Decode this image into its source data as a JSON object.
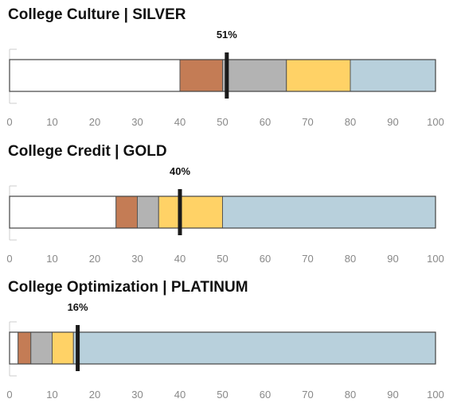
{
  "chart_data": [
    {
      "type": "bar",
      "title": "College Culture  |  SILVER",
      "xlim": [
        0,
        100
      ],
      "ticks": [
        "0",
        "10",
        "20",
        "30",
        "40",
        "50",
        "60",
        "70",
        "80",
        "90",
        "100"
      ],
      "bands": [
        {
          "from": 0,
          "to": 40,
          "color": "#ffffff"
        },
        {
          "from": 40,
          "to": 50,
          "color": "#c47c55"
        },
        {
          "from": 50,
          "to": 65,
          "color": "#b3b3b3"
        },
        {
          "from": 65,
          "to": 80,
          "color": "#ffd266"
        },
        {
          "from": 80,
          "to": 100,
          "color": "#b8d0dc"
        }
      ],
      "marker": {
        "value": 51,
        "label": "51%"
      }
    },
    {
      "type": "bar",
      "title": "College Credit  |  GOLD",
      "xlim": [
        0,
        100
      ],
      "ticks": [
        "0",
        "10",
        "20",
        "30",
        "40",
        "50",
        "60",
        "70",
        "80",
        "90",
        "100"
      ],
      "bands": [
        {
          "from": 0,
          "to": 25,
          "color": "#ffffff"
        },
        {
          "from": 25,
          "to": 30,
          "color": "#c47c55"
        },
        {
          "from": 30,
          "to": 35,
          "color": "#b3b3b3"
        },
        {
          "from": 35,
          "to": 50,
          "color": "#ffd266"
        },
        {
          "from": 50,
          "to": 100,
          "color": "#b8d0dc"
        }
      ],
      "marker": {
        "value": 40,
        "label": "40%"
      }
    },
    {
      "type": "bar",
      "title": "College Optimization  |  PLATINUM",
      "xlim": [
        0,
        100
      ],
      "ticks": [
        "0",
        "10",
        "20",
        "30",
        "40",
        "50",
        "60",
        "70",
        "80",
        "90",
        "100"
      ],
      "bands": [
        {
          "from": 0,
          "to": 2,
          "color": "#ffffff"
        },
        {
          "from": 2,
          "to": 5,
          "color": "#c47c55"
        },
        {
          "from": 5,
          "to": 10,
          "color": "#b3b3b3"
        },
        {
          "from": 10,
          "to": 15,
          "color": "#ffd266"
        },
        {
          "from": 15,
          "to": 100,
          "color": "#b8d0dc"
        }
      ],
      "marker": {
        "value": 16,
        "label": "16%"
      }
    }
  ]
}
